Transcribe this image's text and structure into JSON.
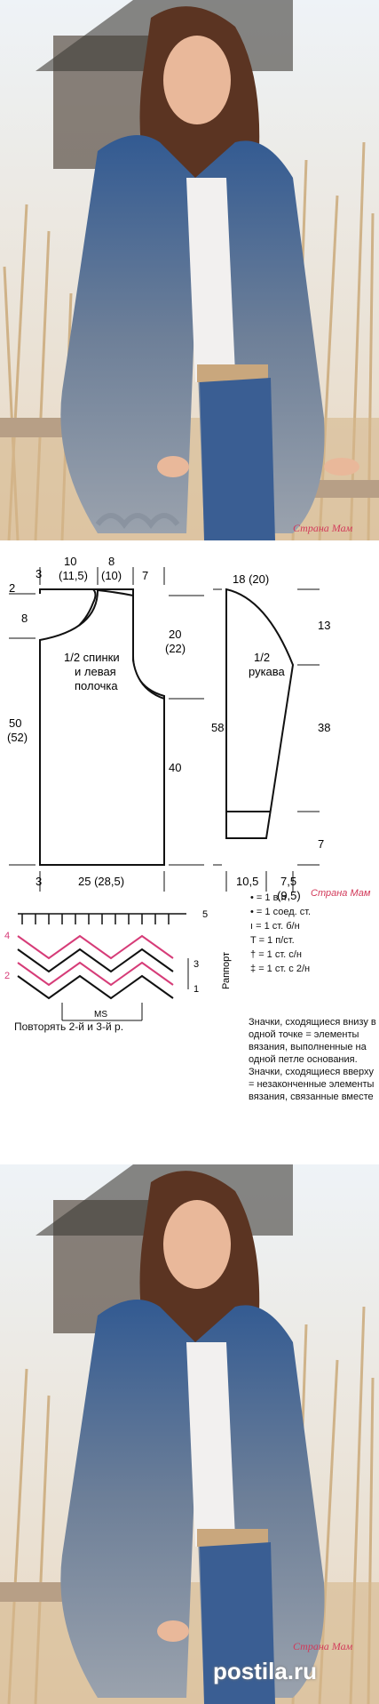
{
  "watermark": "Страна Мам",
  "pattern": {
    "label_half_back": [
      "1/2 спинки",
      "и левая",
      "полочка"
    ],
    "label_sleeve": [
      "1/2",
      "рукава"
    ],
    "dims_body": {
      "top_left": "3",
      "neck_width": "10\n(11,5)",
      "shoulder": "8\n(10)",
      "side_top": "7",
      "neck_drop_2": "2",
      "neck_drop_8": "8",
      "armhole": "20\n(22)",
      "total_length": "50\n(52)",
      "side_length": "40",
      "bottom_left": "3",
      "bottom_width": "25 (28,5)"
    },
    "dims_sleeve": {
      "top_width": "18 (20)",
      "cap": "13",
      "total": "58",
      "sleeve_length": "38",
      "cuff": "7",
      "cuff_width": "10,5",
      "bottom_width": "7,5\n(9,5)"
    }
  },
  "chart": {
    "rows": [
      "5",
      "4",
      "3",
      "2",
      "1"
    ],
    "rapport_label": "Раппорт",
    "ms_label": "MS",
    "repeat_note": "Повторять 2-й и 3-й р."
  },
  "legend": [
    {
      "symbol": "•",
      "text": "= 1 в.п"
    },
    {
      "symbol": "•",
      "text": "= 1 соед. ст."
    },
    {
      "symbol": "ı",
      "text": "= 1 ст. б/н"
    },
    {
      "symbol": "T",
      "text": "= 1 п/ст."
    },
    {
      "symbol": "†",
      "text": "= 1 ст. с/н"
    },
    {
      "symbol": "‡",
      "text": "= 1 ст. с 2/н"
    }
  ],
  "note_text": "Значки, сходящиеся внизу в одной точке = элементы вязания, выполненные на одной петле основания. Значки, сходящиеся вверху = незаконченные элементы вязания, связанные вместе",
  "postila": "postila.ru",
  "colors": {
    "accent": "#d23a5a",
    "denim": "#3d5f93",
    "grey": "#8d96a4",
    "reeds": "#d6b88c"
  }
}
